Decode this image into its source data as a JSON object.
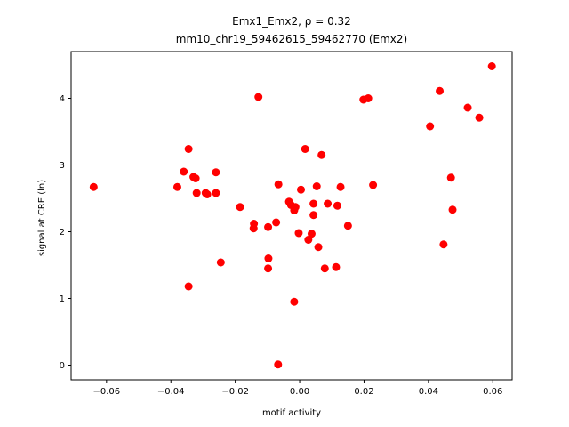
{
  "chart_data": {
    "type": "scatter",
    "title_line1": "Emx1_Emx2, ρ = 0.32",
    "title_line2": "mm10_chr19_59462615_59462770 (Emx2)",
    "xlabel": "motif activity",
    "ylabel": "signal at CRE (ln)",
    "xlim": [
      -0.071,
      0.066
    ],
    "ylim": [
      -0.22,
      4.7
    ],
    "x_ticks": [
      -0.06,
      -0.04,
      -0.02,
      0.0,
      0.02,
      0.04,
      0.06
    ],
    "x_tick_labels": [
      "−0.06",
      "−0.04",
      "−0.02",
      "0.00",
      "0.02",
      "0.04",
      "0.06"
    ],
    "y_ticks": [
      0,
      1,
      2,
      3,
      4
    ],
    "y_tick_labels": [
      "0",
      "1",
      "2",
      "3",
      "4"
    ],
    "grid": false,
    "marker_color": "#ff0000",
    "points": [
      {
        "x": -0.064,
        "y": 2.67
      },
      {
        "x": -0.038,
        "y": 2.67
      },
      {
        "x": -0.036,
        "y": 2.9
      },
      {
        "x": -0.0345,
        "y": 3.24
      },
      {
        "x": -0.033,
        "y": 2.82
      },
      {
        "x": -0.0323,
        "y": 2.8
      },
      {
        "x": -0.032,
        "y": 2.58
      },
      {
        "x": -0.0292,
        "y": 2.58
      },
      {
        "x": -0.0287,
        "y": 2.56
      },
      {
        "x": -0.026,
        "y": 2.89
      },
      {
        "x": -0.026,
        "y": 2.58
      },
      {
        "x": -0.0345,
        "y": 1.18
      },
      {
        "x": -0.0245,
        "y": 1.54
      },
      {
        "x": -0.0185,
        "y": 2.37
      },
      {
        "x": -0.0142,
        "y": 2.12
      },
      {
        "x": -0.0143,
        "y": 2.05
      },
      {
        "x": -0.0128,
        "y": 4.02
      },
      {
        "x": -0.0098,
        "y": 2.07
      },
      {
        "x": -0.0097,
        "y": 1.6
      },
      {
        "x": -0.0098,
        "y": 1.45
      },
      {
        "x": -0.0073,
        "y": 2.14
      },
      {
        "x": -0.0066,
        "y": 2.71
      },
      {
        "x": -0.0067,
        "y": 0.01
      },
      {
        "x": -0.0033,
        "y": 2.45
      },
      {
        "x": -0.0027,
        "y": 2.4
      },
      {
        "x": -0.0017,
        "y": 2.32
      },
      {
        "x": -0.0013,
        "y": 2.37
      },
      {
        "x": -0.0017,
        "y": 0.95
      },
      {
        "x": -0.0003,
        "y": 1.98
      },
      {
        "x": 0.0004,
        "y": 2.63
      },
      {
        "x": 0.0017,
        "y": 3.24
      },
      {
        "x": 0.0027,
        "y": 1.88
      },
      {
        "x": 0.0037,
        "y": 1.97
      },
      {
        "x": 0.0043,
        "y": 2.42
      },
      {
        "x": 0.0043,
        "y": 2.25
      },
      {
        "x": 0.0053,
        "y": 2.68
      },
      {
        "x": 0.0058,
        "y": 1.77
      },
      {
        "x": 0.0068,
        "y": 3.15
      },
      {
        "x": 0.0078,
        "y": 1.45
      },
      {
        "x": 0.0087,
        "y": 2.42
      },
      {
        "x": 0.0113,
        "y": 1.47
      },
      {
        "x": 0.0117,
        "y": 2.39
      },
      {
        "x": 0.0127,
        "y": 2.67
      },
      {
        "x": 0.015,
        "y": 2.09
      },
      {
        "x": 0.0198,
        "y": 3.98
      },
      {
        "x": 0.0213,
        "y": 4.0
      },
      {
        "x": 0.0228,
        "y": 2.7
      },
      {
        "x": 0.0405,
        "y": 3.58
      },
      {
        "x": 0.0435,
        "y": 4.11
      },
      {
        "x": 0.0447,
        "y": 1.81
      },
      {
        "x": 0.047,
        "y": 2.81
      },
      {
        "x": 0.0475,
        "y": 2.33
      },
      {
        "x": 0.0522,
        "y": 3.86
      },
      {
        "x": 0.0558,
        "y": 3.71
      },
      {
        "x": 0.0597,
        "y": 4.48
      }
    ]
  }
}
